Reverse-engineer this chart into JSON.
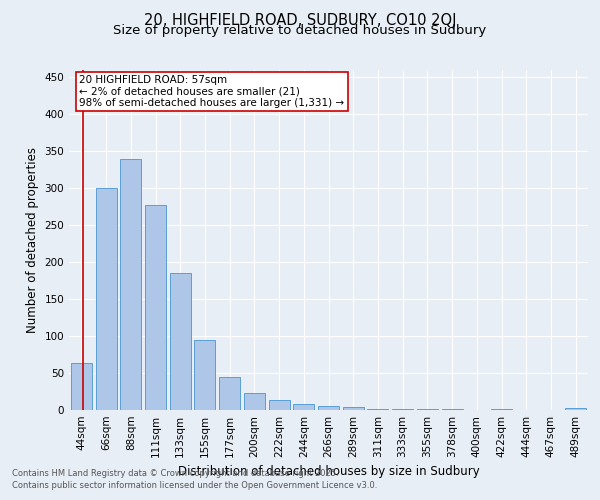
{
  "title1": "20, HIGHFIELD ROAD, SUDBURY, CO10 2QJ",
  "title2": "Size of property relative to detached houses in Sudbury",
  "xlabel": "Distribution of detached houses by size in Sudbury",
  "ylabel": "Number of detached properties",
  "bar_labels": [
    "44sqm",
    "66sqm",
    "88sqm",
    "111sqm",
    "133sqm",
    "155sqm",
    "177sqm",
    "200sqm",
    "222sqm",
    "244sqm",
    "266sqm",
    "289sqm",
    "311sqm",
    "333sqm",
    "355sqm",
    "378sqm",
    "400sqm",
    "422sqm",
    "444sqm",
    "467sqm",
    "489sqm"
  ],
  "bar_values": [
    63,
    300,
    340,
    278,
    185,
    95,
    45,
    23,
    14,
    8,
    6,
    4,
    2,
    1,
    1,
    1,
    0,
    1,
    0,
    0,
    3
  ],
  "bar_color": "#aec6e8",
  "bar_edge_color": "#5a9fd4",
  "annotation_box_text": "20 HIGHFIELD ROAD: 57sqm\n← 2% of detached houses are smaller (21)\n98% of semi-detached houses are larger (1,331) →",
  "red_line_color": "#cc0000",
  "box_edge_color": "#cc0000",
  "ylim": [
    0,
    460
  ],
  "yticks": [
    0,
    50,
    100,
    150,
    200,
    250,
    300,
    350,
    400,
    450
  ],
  "background_color": "#e8eef5",
  "plot_bg_color": "#e8eef5",
  "footer_line1": "Contains HM Land Registry data © Crown copyright and database right 2025.",
  "footer_line2": "Contains public sector information licensed under the Open Government Licence v3.0.",
  "title_fontsize": 10.5,
  "subtitle_fontsize": 9.5,
  "axis_label_fontsize": 8.5,
  "tick_fontsize": 7.5,
  "annotation_fontsize": 7.5,
  "footer_fontsize": 6.0
}
